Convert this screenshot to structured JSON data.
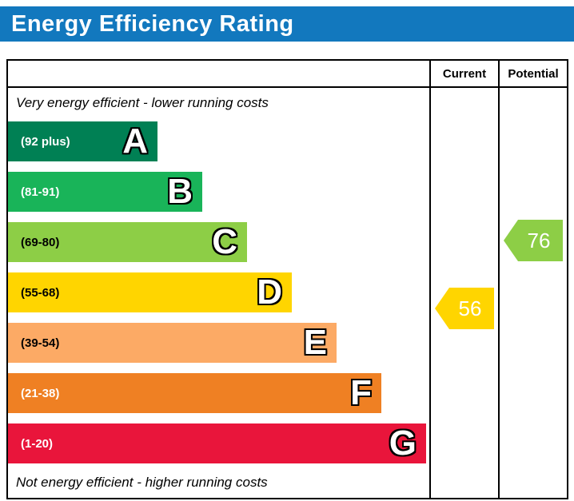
{
  "header": {
    "title": "Energy Efficiency Rating",
    "bg_color": "#1278be"
  },
  "table": {
    "current_label": "Current",
    "potential_label": "Potential"
  },
  "notes": {
    "top": "Very energy efficient - lower running costs",
    "bottom": "Not energy efficient - higher running costs"
  },
  "bands": [
    {
      "letter": "A",
      "range": "(92 plus)",
      "color": "#008054",
      "text_color": "#ffffff"
    },
    {
      "letter": "B",
      "range": "(81-91)",
      "color": "#19b459",
      "text_color": "#ffffff"
    },
    {
      "letter": "C",
      "range": "(69-80)",
      "color": "#8dce46",
      "text_color": "#000000"
    },
    {
      "letter": "D",
      "range": "(55-68)",
      "color": "#ffd500",
      "text_color": "#000000"
    },
    {
      "letter": "E",
      "range": "(39-54)",
      "color": "#fcaa65",
      "text_color": "#000000"
    },
    {
      "letter": "F",
      "range": "(21-38)",
      "color": "#ef8023",
      "text_color": "#ffffff"
    },
    {
      "letter": "G",
      "range": "(1-20)",
      "color": "#e9153b",
      "text_color": "#ffffff"
    }
  ],
  "indicators": {
    "current": {
      "value": 56,
      "band": "D",
      "color": "#ffd500",
      "text_color": "#ffffff"
    },
    "potential": {
      "value": 76,
      "band": "C",
      "color": "#8dce46",
      "text_color": "#ffffff"
    }
  },
  "chart_data": {
    "type": "bar",
    "title": "Energy Efficiency Rating",
    "categories": [
      "A (92 plus)",
      "B (81-91)",
      "C (69-80)",
      "D (55-68)",
      "E (39-54)",
      "F (21-38)",
      "G (1-20)"
    ],
    "series": [
      {
        "name": "Current",
        "value": 56,
        "band": "D"
      },
      {
        "name": "Potential",
        "value": 76,
        "band": "C"
      }
    ],
    "annotations": [
      "Very energy efficient - lower running costs",
      "Not energy efficient - higher running costs"
    ],
    "scale_range": [
      1,
      100
    ],
    "legend_position": "right-columns",
    "grid": false
  }
}
